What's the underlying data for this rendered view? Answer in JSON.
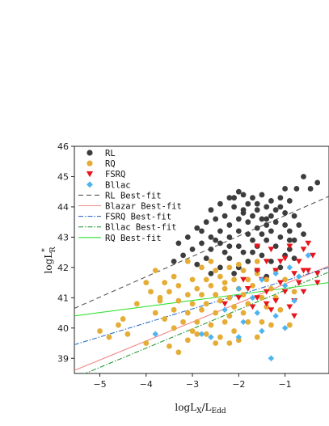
{
  "chart_data": {
    "type": "scatter",
    "title": "",
    "xlabel": "logL",
    "xlabel_sub": "X",
    "xlabel_sep": "/L",
    "xlabel_sub2": "Edd",
    "ylabel": "logL",
    "ylabel_sup": "*",
    "ylabel_sub": "R",
    "xlim": [
      -5.55,
      -0.05
    ],
    "ylim": [
      38.5,
      46
    ],
    "xticks": [
      -5,
      -4,
      -3,
      -2,
      -1
    ],
    "xtick_labels": [
      "−5",
      "−4",
      "−3",
      "−2",
      "−1"
    ],
    "yticks": [
      39,
      40,
      41,
      42,
      43,
      44,
      45,
      46
    ],
    "ytick_labels": [
      "39",
      "40",
      "41",
      "42",
      "43",
      "44",
      "45",
      "46"
    ],
    "legend_position": "top-left",
    "series": [
      {
        "name": "RL",
        "kind": "points",
        "marker": "circle",
        "color": "#3d3d3d",
        "points": [
          [
            -2.0,
            44.5
          ],
          [
            -1.9,
            44.4
          ],
          [
            -2.2,
            44.3
          ],
          [
            -1.7,
            44.3
          ],
          [
            -1.5,
            44.4
          ],
          [
            -1.3,
            44.2
          ],
          [
            -2.4,
            44.1
          ],
          [
            -1.1,
            44.3
          ],
          [
            -0.9,
            44.2
          ],
          [
            -1.8,
            44.1
          ],
          [
            -2.1,
            44.0
          ],
          [
            -1.6,
            43.9
          ],
          [
            -1.4,
            44.0
          ],
          [
            -2.6,
            43.9
          ],
          [
            -1.2,
            43.9
          ],
          [
            -0.6,
            45.0
          ],
          [
            -0.45,
            44.6
          ],
          [
            -0.75,
            44.6
          ],
          [
            -1.0,
            44.6
          ],
          [
            -1.9,
            43.8
          ],
          [
            -2.3,
            43.7
          ],
          [
            -1.7,
            43.7
          ],
          [
            -1.5,
            43.6
          ],
          [
            -1.3,
            43.7
          ],
          [
            -1.0,
            43.8
          ],
          [
            -0.8,
            43.7
          ],
          [
            -2.5,
            43.6
          ],
          [
            -2.0,
            43.6
          ],
          [
            -1.8,
            43.5
          ],
          [
            -1.4,
            43.4
          ],
          [
            -2.7,
            43.5
          ],
          [
            -2.2,
            43.4
          ],
          [
            -1.6,
            43.3
          ],
          [
            -1.2,
            43.5
          ],
          [
            -1.0,
            43.4
          ],
          [
            -2.9,
            43.3
          ],
          [
            -2.4,
            43.2
          ],
          [
            -2.0,
            43.2
          ],
          [
            -1.8,
            43.1
          ],
          [
            -1.5,
            43.1
          ],
          [
            -1.3,
            43.2
          ],
          [
            -0.9,
            43.2
          ],
          [
            -0.7,
            43.4
          ],
          [
            -3.1,
            43.0
          ],
          [
            -2.6,
            43.0
          ],
          [
            -2.2,
            43.0
          ],
          [
            -1.7,
            42.9
          ],
          [
            -1.4,
            42.9
          ],
          [
            -1.1,
            43.0
          ],
          [
            -0.8,
            42.9
          ],
          [
            -3.3,
            42.8
          ],
          [
            -2.8,
            42.8
          ],
          [
            -2.4,
            42.8
          ],
          [
            -2.0,
            42.7
          ],
          [
            -1.6,
            42.7
          ],
          [
            -1.2,
            42.7
          ],
          [
            -0.9,
            42.6
          ],
          [
            -3.0,
            42.6
          ],
          [
            -2.6,
            42.6
          ],
          [
            -2.3,
            42.5
          ],
          [
            -1.9,
            42.5
          ],
          [
            -1.5,
            42.4
          ],
          [
            -1.0,
            42.4
          ],
          [
            -3.2,
            42.4
          ],
          [
            -2.7,
            42.3
          ],
          [
            -2.2,
            42.3
          ],
          [
            -1.8,
            42.2
          ],
          [
            -1.3,
            42.2
          ],
          [
            -0.8,
            42.3
          ],
          [
            -2.9,
            42.1
          ],
          [
            -2.4,
            42.0
          ],
          [
            -2.0,
            42.0
          ],
          [
            -1.6,
            41.9
          ],
          [
            -1.1,
            42.0
          ],
          [
            -3.4,
            42.2
          ],
          [
            -2.6,
            41.8
          ],
          [
            -2.1,
            41.8
          ],
          [
            -1.4,
            41.7
          ],
          [
            -1.9,
            43.9
          ],
          [
            -1.1,
            44.0
          ],
          [
            -2.8,
            43.2
          ],
          [
            -0.6,
            43.1
          ],
          [
            -0.3,
            44.8
          ],
          [
            -2.1,
            44.3
          ],
          [
            -1.6,
            44.1
          ],
          [
            -2.5,
            42.9
          ],
          [
            -1.7,
            42.5
          ],
          [
            -2.2,
            42.7
          ],
          [
            -1.4,
            43.6
          ],
          [
            -0.9,
            42.9
          ]
        ]
      },
      {
        "name": "RQ",
        "kind": "points",
        "marker": "circle",
        "color": "#e5ad36",
        "points": [
          [
            -3.1,
            42.2
          ],
          [
            -2.8,
            42.0
          ],
          [
            -2.5,
            41.9
          ],
          [
            -2.2,
            42.0
          ],
          [
            -1.9,
            41.9
          ],
          [
            -1.6,
            41.8
          ],
          [
            -3.4,
            41.7
          ],
          [
            -3.0,
            41.6
          ],
          [
            -2.7,
            41.6
          ],
          [
            -2.4,
            41.7
          ],
          [
            -2.1,
            41.6
          ],
          [
            -1.8,
            41.6
          ],
          [
            -1.4,
            41.6
          ],
          [
            -3.6,
            41.5
          ],
          [
            -3.3,
            41.4
          ],
          [
            -2.9,
            41.3
          ],
          [
            -2.6,
            41.4
          ],
          [
            -2.3,
            41.3
          ],
          [
            -2.0,
            41.3
          ],
          [
            -1.7,
            41.4
          ],
          [
            -1.3,
            41.3
          ],
          [
            -3.5,
            41.2
          ],
          [
            -3.1,
            41.1
          ],
          [
            -2.8,
            41.1
          ],
          [
            -2.5,
            41.1
          ],
          [
            -2.2,
            41.0
          ],
          [
            -1.9,
            41.1
          ],
          [
            -1.5,
            41.0
          ],
          [
            -3.7,
            41.0
          ],
          [
            -3.3,
            40.9
          ],
          [
            -3.0,
            40.8
          ],
          [
            -2.7,
            40.8
          ],
          [
            -2.4,
            40.9
          ],
          [
            -2.1,
            40.7
          ],
          [
            -1.8,
            40.8
          ],
          [
            -1.4,
            40.7
          ],
          [
            -3.4,
            40.6
          ],
          [
            -3.1,
            40.5
          ],
          [
            -2.8,
            40.6
          ],
          [
            -2.5,
            40.5
          ],
          [
            -2.2,
            40.4
          ],
          [
            -1.9,
            40.5
          ],
          [
            -3.6,
            40.3
          ],
          [
            -3.2,
            40.2
          ],
          [
            -2.9,
            40.2
          ],
          [
            -2.6,
            40.1
          ],
          [
            -2.3,
            40.2
          ],
          [
            -1.8,
            40.2
          ],
          [
            -3.4,
            40.0
          ],
          [
            -3.0,
            39.9
          ],
          [
            -2.7,
            39.8
          ],
          [
            -2.4,
            39.7
          ],
          [
            -2.1,
            39.9
          ],
          [
            -3.1,
            39.6
          ],
          [
            -2.5,
            39.5
          ],
          [
            -2.2,
            39.5
          ],
          [
            -3.3,
            39.2
          ],
          [
            -4.0,
            41.5
          ],
          [
            -4.2,
            40.8
          ],
          [
            -4.5,
            40.3
          ],
          [
            -4.6,
            40.1
          ],
          [
            -4.4,
            39.8
          ],
          [
            -4.8,
            39.7
          ],
          [
            -5.0,
            39.9
          ],
          [
            -4.0,
            39.5
          ],
          [
            -3.8,
            40.5
          ],
          [
            -2.0,
            42.1
          ],
          [
            -1.6,
            42.2
          ],
          [
            -1.2,
            41.9
          ],
          [
            -1.0,
            41.6
          ],
          [
            -0.8,
            41.2
          ],
          [
            -1.1,
            40.6
          ],
          [
            -1.5,
            40.2
          ],
          [
            -2.0,
            39.6
          ],
          [
            -1.6,
            39.7
          ],
          [
            -2.6,
            42.2
          ],
          [
            -3.8,
            41.9
          ],
          [
            -2.3,
            41.5
          ],
          [
            -3.7,
            40.9
          ],
          [
            -1.3,
            40.1
          ],
          [
            -0.9,
            40.1
          ],
          [
            -3.5,
            39.4
          ],
          [
            -2.9,
            39.8
          ],
          [
            -3.9,
            41.2
          ],
          [
            -1.2,
            41.0
          ]
        ]
      },
      {
        "name": "FSRQ",
        "kind": "points",
        "marker": "triangle-down",
        "color": "#e8141b",
        "points": [
          [
            -1.6,
            42.7
          ],
          [
            -1.3,
            42.6
          ],
          [
            -0.9,
            42.7
          ],
          [
            -0.6,
            42.6
          ],
          [
            -0.4,
            42.4
          ],
          [
            -1.4,
            42.2
          ],
          [
            -1.0,
            42.3
          ],
          [
            -0.7,
            42.2
          ],
          [
            -1.6,
            41.9
          ],
          [
            -1.2,
            41.9
          ],
          [
            -0.8,
            41.8
          ],
          [
            -0.5,
            41.9
          ],
          [
            -1.5,
            41.6
          ],
          [
            -1.1,
            41.5
          ],
          [
            -0.7,
            41.5
          ],
          [
            -0.3,
            41.5
          ],
          [
            -1.8,
            41.3
          ],
          [
            -1.4,
            41.2
          ],
          [
            -1.0,
            41.2
          ],
          [
            -0.6,
            41.2
          ],
          [
            -2.0,
            41.0
          ],
          [
            -1.6,
            41.0
          ],
          [
            -1.2,
            40.9
          ],
          [
            -0.8,
            40.9
          ],
          [
            -2.3,
            40.8
          ],
          [
            -1.3,
            40.6
          ],
          [
            -0.9,
            40.7
          ],
          [
            -1.7,
            40.7
          ],
          [
            -1.1,
            42.2
          ],
          [
            -0.5,
            42.8
          ],
          [
            -0.3,
            41.8
          ],
          [
            -1.9,
            41.6
          ],
          [
            -0.8,
            40.4
          ],
          [
            -1.4,
            40.8
          ],
          [
            -0.6,
            41.9
          ]
        ]
      },
      {
        "name": "Bllac",
        "kind": "points",
        "marker": "diamond",
        "color": "#4db4f0",
        "points": [
          [
            -0.5,
            42.4
          ],
          [
            -0.9,
            42.0
          ],
          [
            -1.2,
            41.8
          ],
          [
            -0.7,
            41.7
          ],
          [
            -1.5,
            41.6
          ],
          [
            -2.0,
            41.3
          ],
          [
            -1.7,
            41.0
          ],
          [
            -1.0,
            41.4
          ],
          [
            -2.3,
            40.6
          ],
          [
            -1.6,
            40.5
          ],
          [
            -1.9,
            40.2
          ],
          [
            -1.5,
            39.9
          ],
          [
            -1.0,
            40.0
          ],
          [
            -2.6,
            39.7
          ],
          [
            -2.0,
            39.7
          ],
          [
            -1.3,
            39.0
          ],
          [
            -3.8,
            39.8
          ],
          [
            -2.8,
            39.8
          ],
          [
            -1.2,
            40.4
          ],
          [
            -0.8,
            40.9
          ]
        ]
      },
      {
        "name": "RL Best-fit",
        "kind": "line",
        "dash": "6,4",
        "color": "#555555",
        "x": [
          -5.55,
          -0.05
        ],
        "y": [
          40.65,
          44.35
        ]
      },
      {
        "name": "Blazar Best-fit",
        "kind": "line",
        "dash": "",
        "color": "#f08a8a",
        "x": [
          -5.55,
          -0.05
        ],
        "y": [
          38.6,
          42.05
        ]
      },
      {
        "name": "FSRQ Best-fit",
        "kind": "line",
        "dash": "6,2,1.5,2",
        "color": "#3070c8",
        "x": [
          -5.55,
          -0.05
        ],
        "y": [
          39.45,
          42.0
        ]
      },
      {
        "name": "Bllac Best-fit",
        "kind": "line",
        "dash": "6,2,1.5,2",
        "color": "#2a9a3a",
        "x": [
          -5.55,
          -0.05
        ],
        "y": [
          38.35,
          41.85
        ]
      },
      {
        "name": "RQ Best-fit",
        "kind": "line",
        "dash": "",
        "color": "#33e033",
        "x": [
          -5.55,
          -0.05
        ],
        "y": [
          40.4,
          41.5
        ]
      }
    ]
  }
}
